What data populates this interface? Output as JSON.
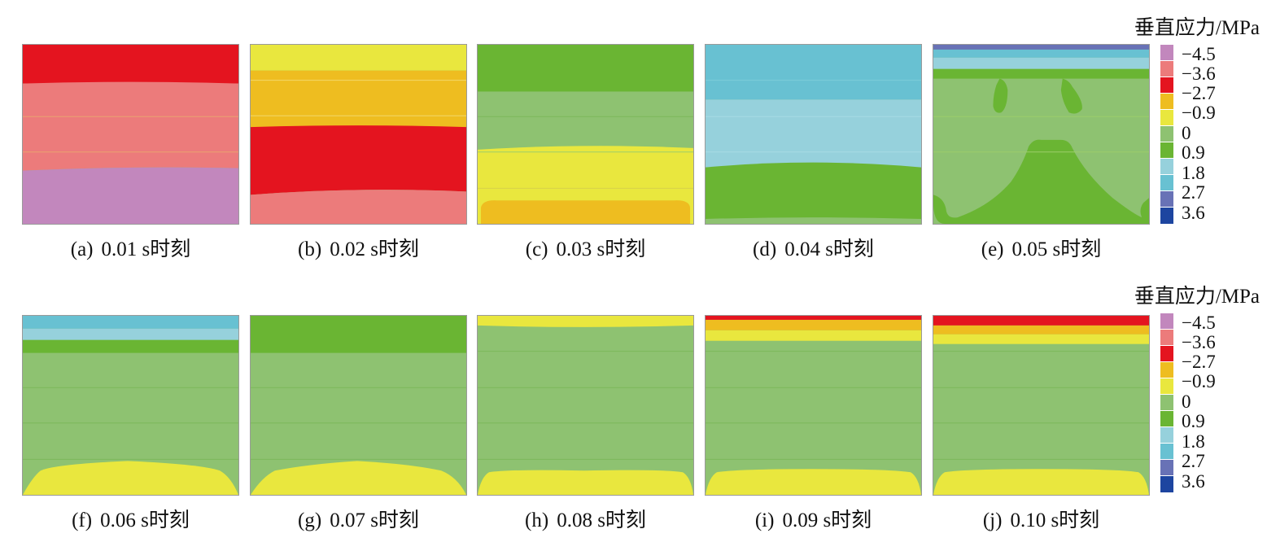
{
  "legend": {
    "title": "垂直应力/MPa",
    "levels": [
      {
        "label": "−4.5",
        "color": "#c287bd"
      },
      {
        "label": "−3.6",
        "color": "#ec7b7b"
      },
      {
        "label": "−2.7",
        "color": "#e4141f"
      },
      {
        "label": "−0.9",
        "color": "#eebd20"
      },
      {
        "label": "0",
        "color": "#e9e73e"
      },
      {
        "label": "0.9",
        "color": "#8ec271"
      },
      {
        "label": "1.8",
        "color": "#6ab533"
      },
      {
        "label": "2.7",
        "color": "#96d1dc"
      },
      {
        "label": "3.6",
        "color": "#68c1d2"
      },
      {
        "label": "",
        "color": "#6872b6"
      },
      {
        "label": "",
        "color": "#1d45a0"
      }
    ]
  },
  "panels": [
    {
      "id": "a",
      "letter": "(a)",
      "time": "0.01",
      "suffix": "s时刻"
    },
    {
      "id": "b",
      "letter": "(b)",
      "time": "0.02",
      "suffix": "s时刻"
    },
    {
      "id": "c",
      "letter": "(c)",
      "time": "0.03",
      "suffix": "s时刻"
    },
    {
      "id": "d",
      "letter": "(d)",
      "time": "0.04",
      "suffix": "s时刻"
    },
    {
      "id": "e",
      "letter": "(e)",
      "time": "0.05",
      "suffix": "s时刻"
    },
    {
      "id": "f",
      "letter": "(f)",
      "time": "0.06",
      "suffix": "s时刻"
    },
    {
      "id": "g",
      "letter": "(g)",
      "time": "0.07",
      "suffix": "s时刻"
    },
    {
      "id": "h",
      "letter": "(h)",
      "time": "0.08",
      "suffix": "s时刻"
    },
    {
      "id": "i",
      "letter": "(i)",
      "time": "0.09",
      "suffix": "s时刻"
    },
    {
      "id": "j",
      "letter": "(j)",
      "time": "0.10",
      "suffix": "s时刻"
    }
  ]
}
